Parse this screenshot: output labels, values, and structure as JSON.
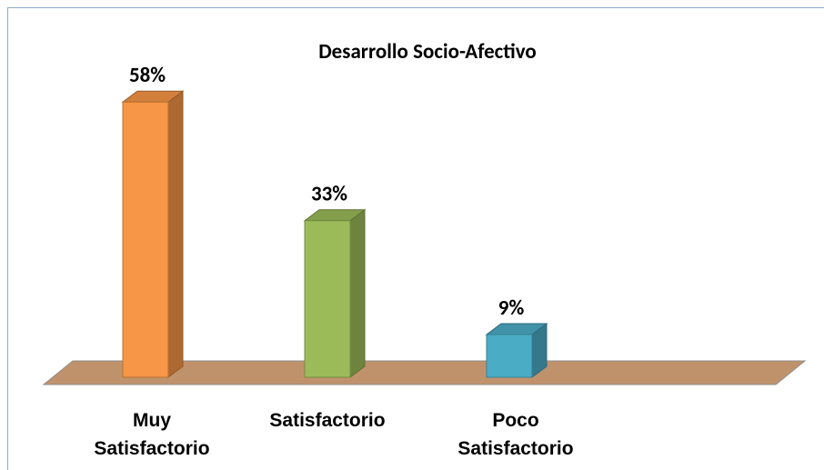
{
  "chart_data": {
    "type": "bar3d",
    "title": "Desarrollo Socio-Afectivo",
    "categories": [
      "Muy Satisfactorio",
      "Satisfactorio",
      "Poco Satisfactorio"
    ],
    "values": [
      58,
      33,
      9
    ],
    "value_labels": [
      "58%",
      "33%",
      "9%"
    ],
    "colors": [
      "#f79646",
      "#9bbb59",
      "#4bacc6"
    ]
  }
}
